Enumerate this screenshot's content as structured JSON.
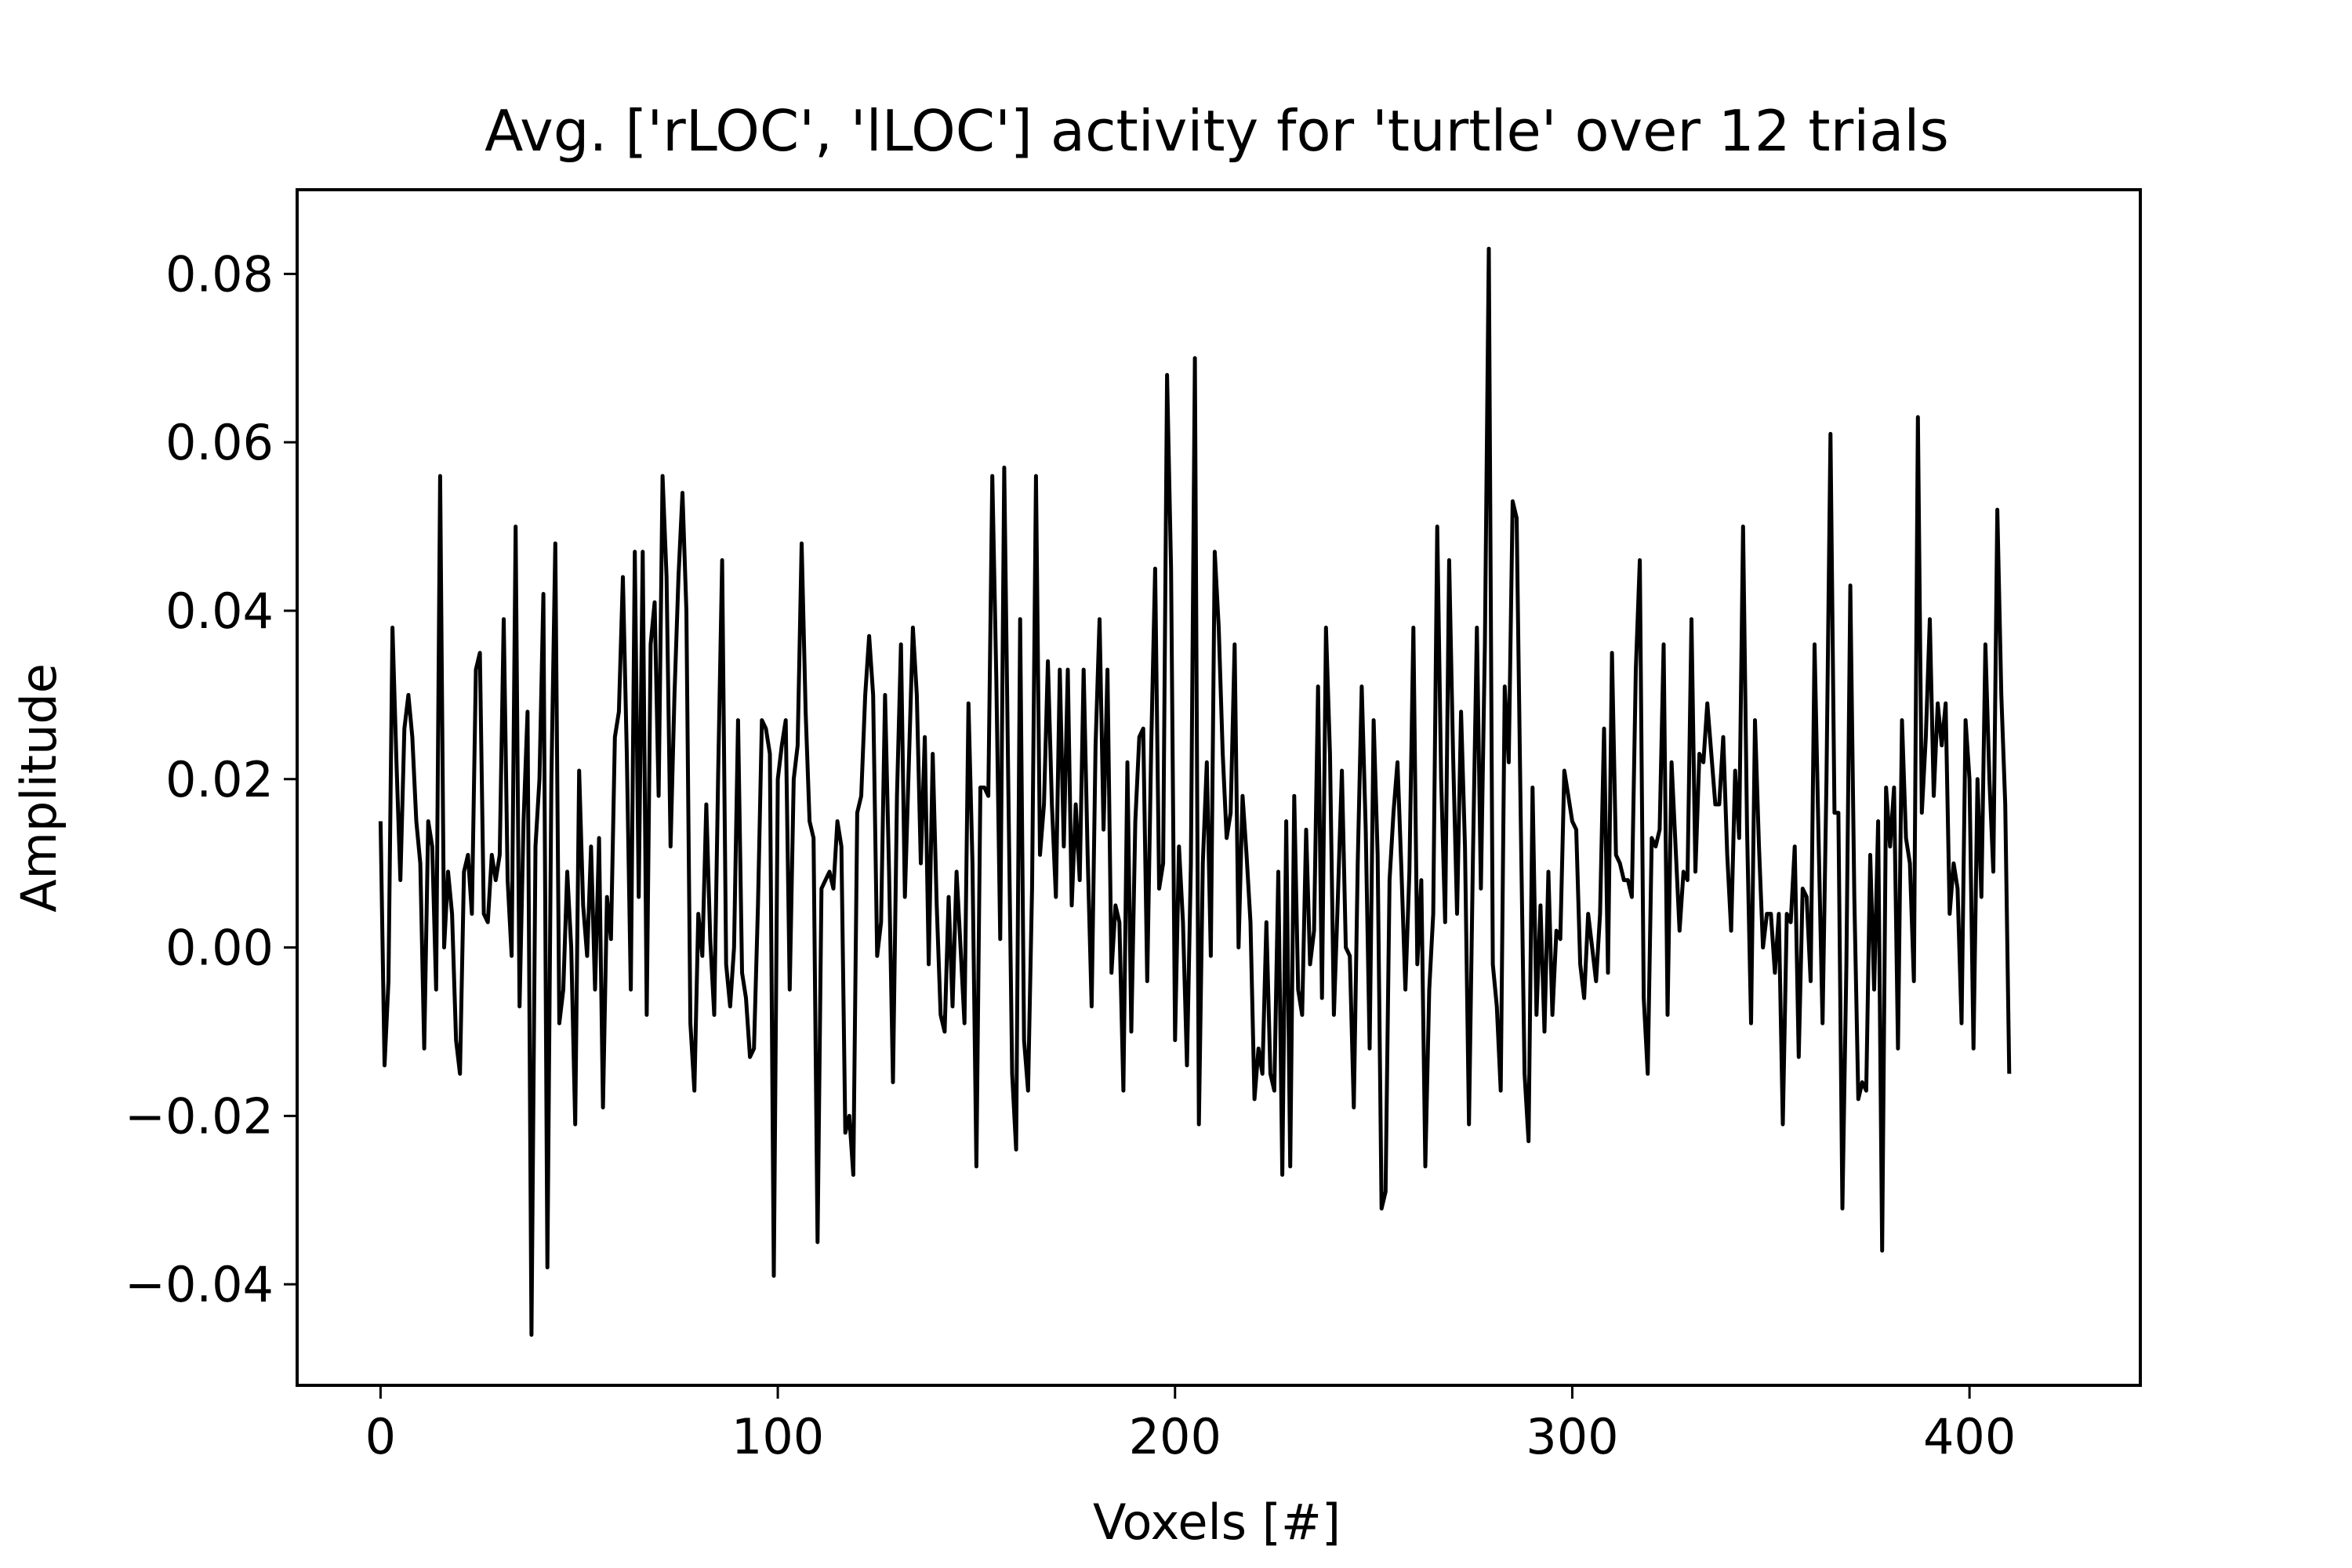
{
  "chart_data": {
    "type": "line",
    "title": "Avg. ['rLOC', 'lLOC'] activity for 'turtle' over 12 trials",
    "xlabel": "Voxels [#]",
    "ylabel": "Amplitude",
    "xlim": [
      -21,
      443
    ],
    "ylim": [
      -0.052,
      0.09
    ],
    "xticks": [
      0,
      100,
      200,
      300,
      400
    ],
    "xtick_labels": [
      "0",
      "100",
      "200",
      "300",
      "400"
    ],
    "yticks": [
      -0.04,
      -0.02,
      0.0,
      0.02,
      0.04,
      0.06,
      0.08
    ],
    "ytick_labels": [
      "−0.04",
      "−0.02",
      "0.00",
      "0.02",
      "0.04",
      "0.06",
      "0.08"
    ],
    "grid": false,
    "line_color": "#000000",
    "series": [
      {
        "x_start": 0,
        "x_step": 1,
        "values": [
          0.015,
          -0.014,
          -0.004,
          0.038,
          0.022,
          0.008,
          0.026,
          0.03,
          0.025,
          0.015,
          0.01,
          -0.012,
          0.015,
          0.012,
          -0.005,
          0.056,
          0.0,
          0.009,
          0.004,
          -0.011,
          -0.015,
          0.009,
          0.011,
          0.004,
          0.033,
          0.035,
          0.004,
          0.003,
          0.011,
          0.008,
          0.011,
          0.039,
          0.008,
          -0.001,
          0.05,
          -0.007,
          0.015,
          0.028,
          -0.046,
          0.012,
          0.02,
          0.042,
          -0.038,
          0.02,
          0.048,
          -0.009,
          -0.005,
          0.009,
          0.0,
          -0.021,
          0.021,
          0.005,
          -0.001,
          0.012,
          -0.005,
          0.013,
          -0.019,
          0.006,
          0.001,
          0.025,
          0.028,
          0.044,
          0.023,
          -0.005,
          0.047,
          0.006,
          0.047,
          -0.008,
          0.036,
          0.041,
          0.018,
          0.056,
          0.044,
          0.012,
          0.03,
          0.044,
          0.054,
          0.04,
          -0.009,
          -0.017,
          0.004,
          -0.001,
          0.017,
          0.001,
          -0.008,
          0.021,
          0.046,
          -0.002,
          -0.007,
          0.0,
          0.027,
          -0.003,
          -0.006,
          -0.013,
          -0.012,
          0.005,
          0.027,
          0.026,
          0.023,
          -0.039,
          0.02,
          0.024,
          0.027,
          -0.005,
          0.02,
          0.024,
          0.048,
          0.028,
          0.015,
          0.013,
          -0.035,
          0.007,
          0.008,
          0.009,
          0.007,
          0.015,
          0.012,
          -0.022,
          -0.02,
          -0.027,
          0.016,
          0.018,
          0.03,
          0.037,
          0.03,
          -0.001,
          0.003,
          0.03,
          0.009,
          -0.016,
          0.018,
          0.036,
          0.006,
          0.022,
          0.038,
          0.03,
          0.01,
          0.025,
          -0.002,
          0.023,
          0.005,
          -0.008,
          -0.01,
          0.006,
          -0.007,
          0.009,
          0.0,
          -0.009,
          0.029,
          0.01,
          -0.026,
          0.019,
          0.019,
          0.018,
          0.056,
          0.032,
          0.001,
          0.057,
          0.02,
          -0.015,
          -0.024,
          0.039,
          -0.011,
          -0.017,
          0.007,
          0.056,
          0.011,
          0.017,
          0.034,
          0.017,
          0.006,
          0.033,
          0.012,
          0.033,
          0.005,
          0.017,
          0.008,
          0.033,
          0.011,
          -0.007,
          0.024,
          0.039,
          0.014,
          0.033,
          -0.003,
          0.005,
          0.003,
          -0.017,
          0.022,
          -0.01,
          0.015,
          0.025,
          0.026,
          -0.004,
          0.024,
          0.045,
          0.007,
          0.01,
          0.068,
          0.045,
          -0.011,
          0.012,
          0.003,
          -0.014,
          0.01,
          0.07,
          -0.021,
          0.01,
          0.022,
          -0.001,
          0.047,
          0.038,
          0.023,
          0.013,
          0.016,
          0.036,
          0.0,
          0.018,
          0.011,
          0.003,
          -0.018,
          -0.012,
          -0.015,
          0.003,
          -0.015,
          -0.017,
          0.009,
          -0.027,
          0.015,
          -0.026,
          0.018,
          -0.005,
          -0.008,
          0.014,
          -0.002,
          0.002,
          0.031,
          -0.006,
          0.038,
          0.023,
          -0.008,
          0.006,
          0.021,
          0.0,
          -0.001,
          -0.019,
          0.01,
          0.031,
          0.014,
          -0.012,
          0.027,
          0.011,
          -0.031,
          -0.029,
          0.008,
          0.016,
          0.022,
          0.009,
          -0.005,
          0.009,
          0.038,
          -0.002,
          0.008,
          -0.026,
          -0.005,
          0.004,
          0.05,
          0.02,
          0.003,
          0.046,
          0.023,
          0.004,
          0.028,
          0.012,
          -0.021,
          0.011,
          0.038,
          0.007,
          0.036,
          0.083,
          -0.002,
          -0.007,
          -0.017,
          0.031,
          0.022,
          0.053,
          0.051,
          0.016,
          -0.015,
          -0.023,
          0.019,
          -0.008,
          0.005,
          -0.01,
          0.009,
          -0.008,
          0.002,
          0.001,
          0.021,
          0.018,
          0.015,
          0.014,
          -0.002,
          -0.006,
          0.004,
          0.0,
          -0.004,
          0.004,
          0.026,
          -0.003,
          0.035,
          0.011,
          0.01,
          0.008,
          0.008,
          0.006,
          0.033,
          0.046,
          -0.006,
          -0.015,
          0.013,
          0.012,
          0.014,
          0.036,
          -0.008,
          0.022,
          0.012,
          0.002,
          0.009,
          0.008,
          0.039,
          0.009,
          0.023,
          0.022,
          0.029,
          0.023,
          0.017,
          0.017,
          0.025,
          0.011,
          0.002,
          0.021,
          0.013,
          0.05,
          0.014,
          -0.009,
          0.027,
          0.012,
          0.0,
          0.004,
          0.004,
          -0.003,
          0.004,
          -0.021,
          0.004,
          0.003,
          0.012,
          -0.013,
          0.007,
          0.006,
          -0.004,
          0.036,
          0.013,
          -0.009,
          0.02,
          0.061,
          0.016,
          0.016,
          -0.031,
          -0.002,
          0.043,
          0.006,
          -0.018,
          -0.016,
          -0.017,
          0.011,
          -0.005,
          0.015,
          -0.036,
          0.019,
          0.012,
          0.019,
          -0.012,
          0.027,
          0.013,
          0.01,
          -0.004,
          0.063,
          0.016,
          0.025,
          0.039,
          0.018,
          0.029,
          0.024,
          0.029,
          0.004,
          0.01,
          0.007,
          -0.009,
          0.027,
          0.02,
          -0.012,
          0.02,
          0.006,
          0.036,
          0.02,
          0.009,
          0.052,
          0.03,
          0.017,
          -0.015
        ]
      }
    ]
  }
}
